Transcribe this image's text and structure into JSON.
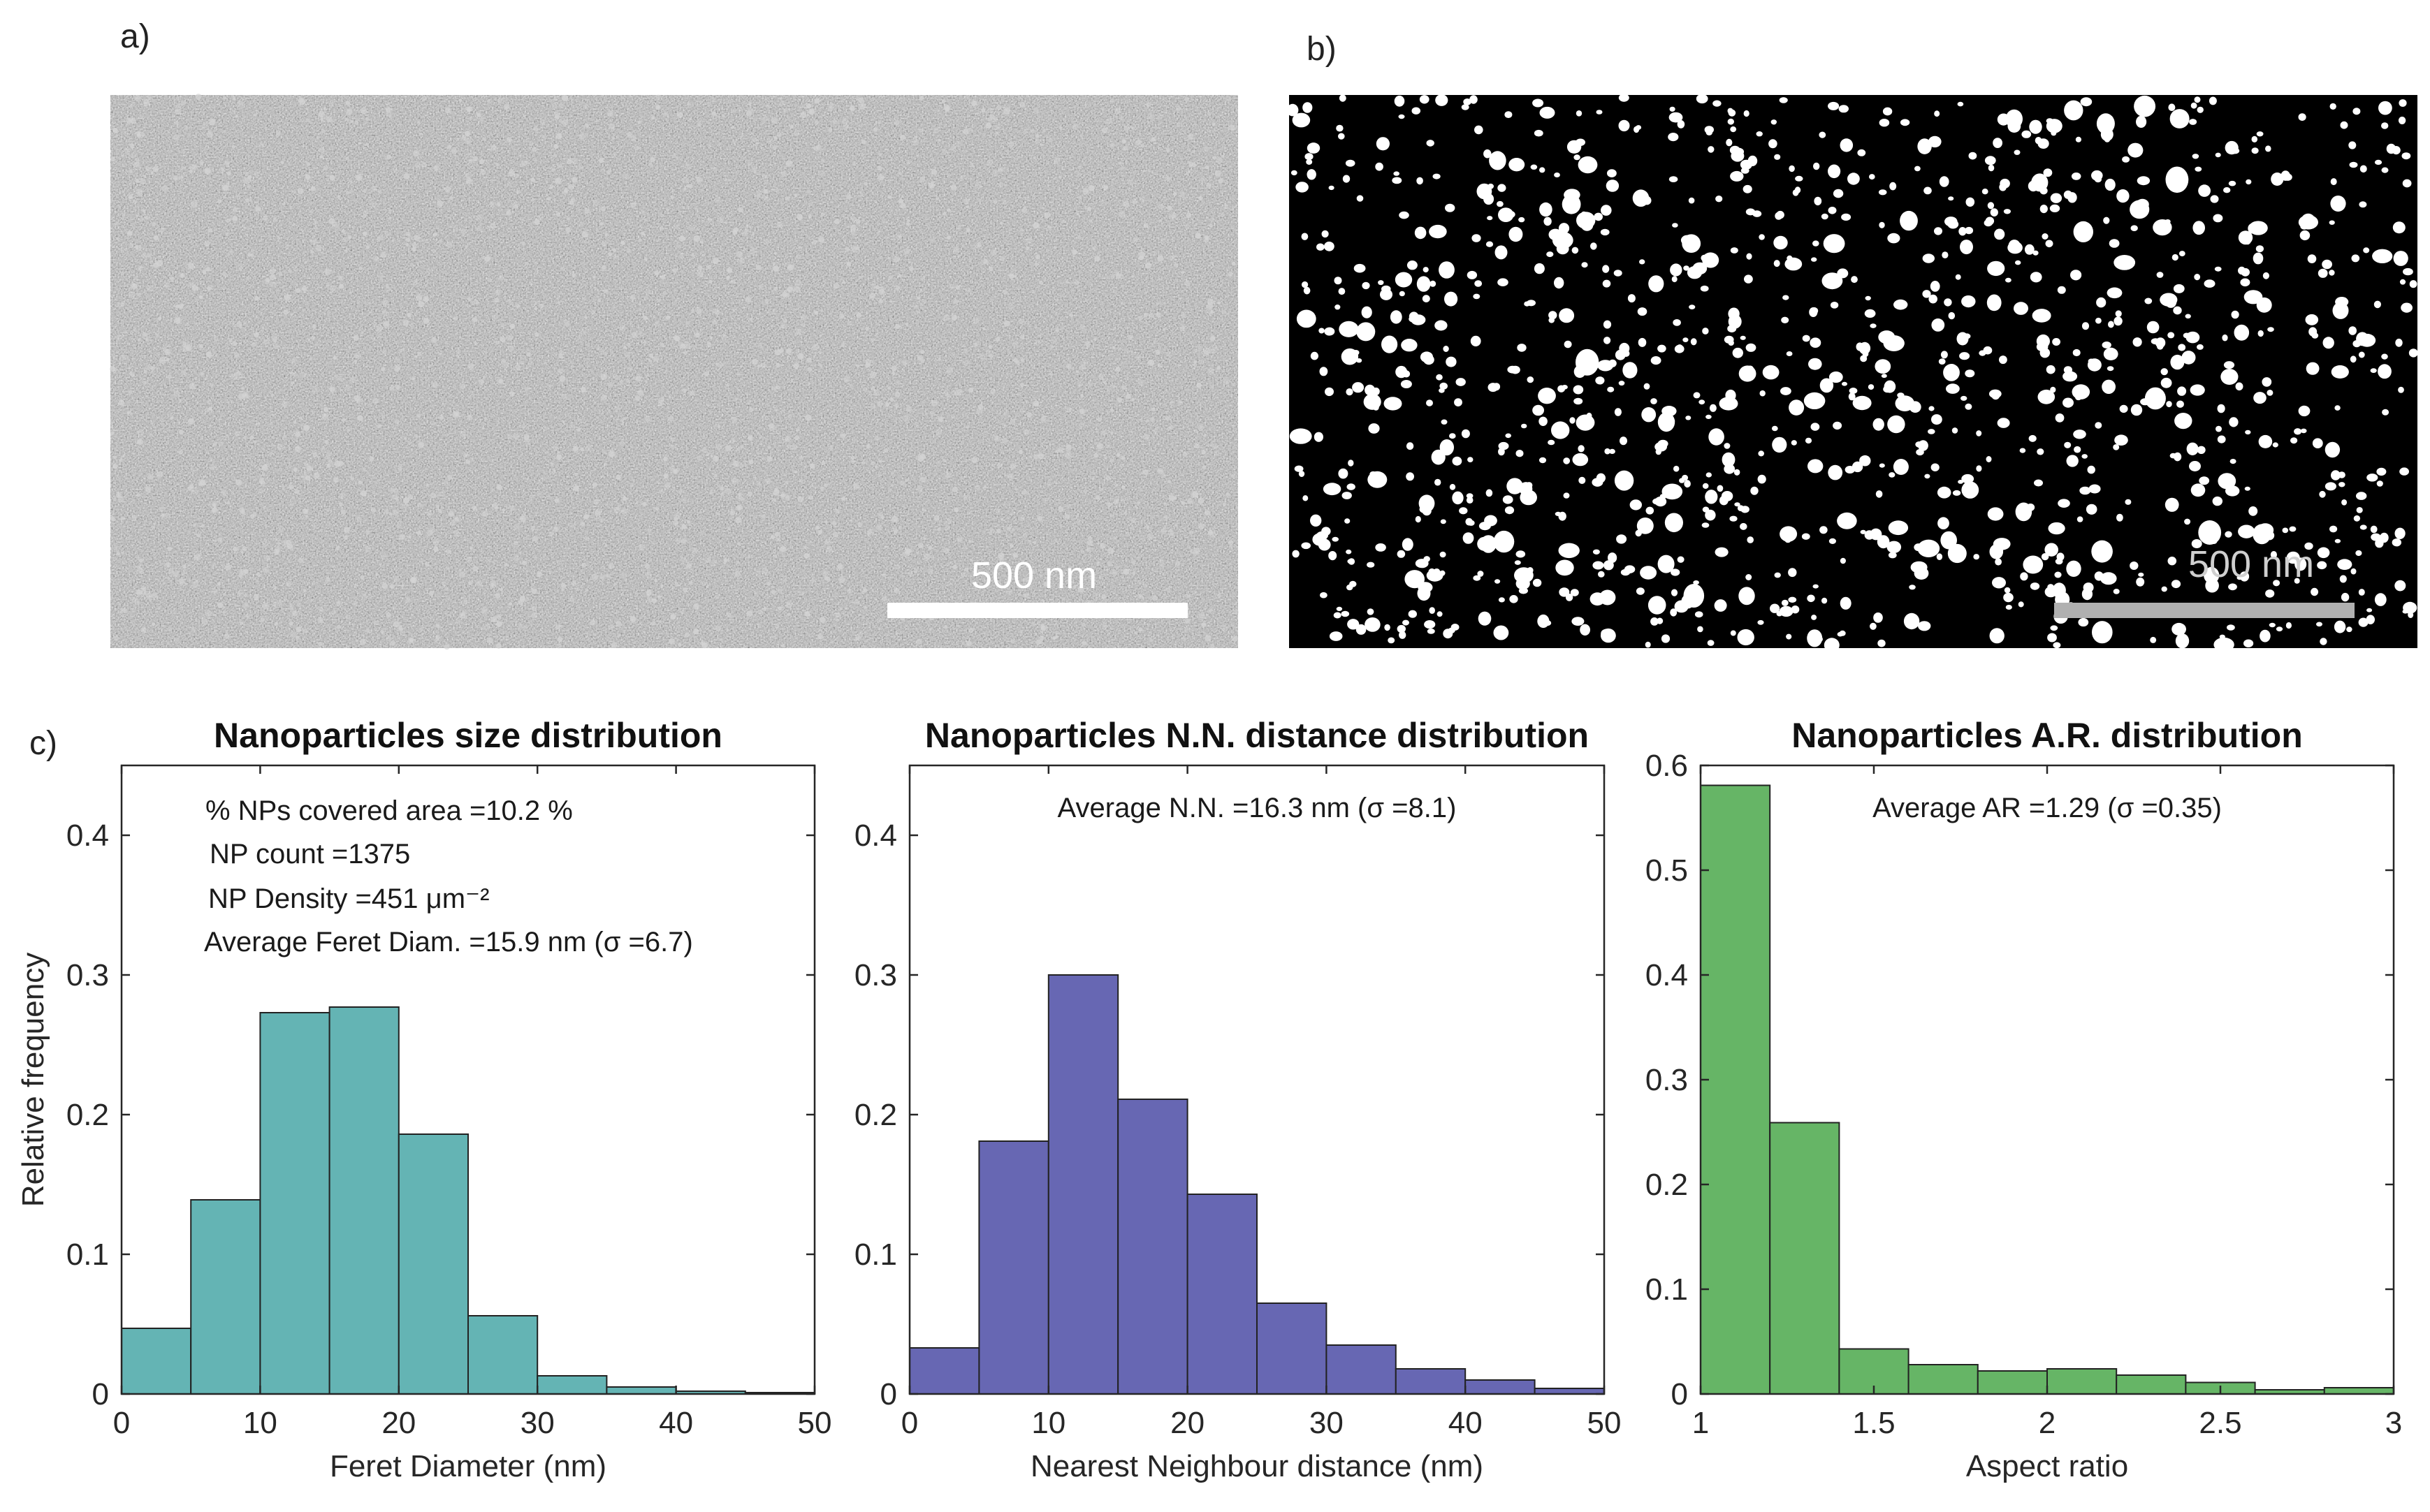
{
  "panels": {
    "a": {
      "label": "a)",
      "scale_text": "500 nm",
      "image_desc": "SEM micrograph"
    },
    "b": {
      "label": "b)",
      "scale_text": "500 nm",
      "image_desc": "binarized particle mask"
    },
    "c": {
      "label": "c)"
    }
  },
  "colors": {
    "teal": "#64b4b4",
    "purple": "#6767b3",
    "green": "#66b566",
    "edge": "#222222"
  },
  "chart_data": [
    {
      "type": "bar",
      "title": "Nanoparticles size distribution",
      "xlabel": "Feret Diameter (nm)",
      "ylabel": "Relative frequency",
      "xlim": [
        0,
        50
      ],
      "ylim": [
        0,
        0.45
      ],
      "xticks": [
        "0",
        "10",
        "20",
        "30",
        "40",
        "50"
      ],
      "xtick_values": [
        0,
        10,
        20,
        30,
        40,
        50
      ],
      "yticks": [
        "0",
        "0.1",
        "0.2",
        "0.3",
        "0.4"
      ],
      "ytick_values": [
        0,
        0.1,
        0.2,
        0.3,
        0.4
      ],
      "bin_edges": [
        0,
        5,
        10,
        15,
        20,
        25,
        30,
        35,
        40,
        45,
        50
      ],
      "values": [
        0.047,
        0.139,
        0.273,
        0.277,
        0.186,
        0.056,
        0.013,
        0.005,
        0.002,
        0.001
      ],
      "annotations": [
        "% NPs covered area =10.2 %",
        "NP count =1375",
        "NP Density =451 μm⁻²",
        "Average Feret Diam. =15.9 nm (σ =6.7)"
      ],
      "color": "#64b4b4"
    },
    {
      "type": "bar",
      "title": "Nanoparticles N.N. distance distribution",
      "xlabel": "Nearest Neighbour distance (nm)",
      "ylabel": "",
      "xlim": [
        0,
        50
      ],
      "ylim": [
        0,
        0.45
      ],
      "xticks": [
        "0",
        "10",
        "20",
        "30",
        "40",
        "50"
      ],
      "xtick_values": [
        0,
        10,
        20,
        30,
        40,
        50
      ],
      "yticks": [
        "0",
        "0.1",
        "0.2",
        "0.3",
        "0.4"
      ],
      "ytick_values": [
        0,
        0.1,
        0.2,
        0.3,
        0.4
      ],
      "bin_edges": [
        0,
        5,
        10,
        15,
        20,
        25,
        30,
        35,
        40,
        45,
        50
      ],
      "values": [
        0.033,
        0.181,
        0.3,
        0.211,
        0.143,
        0.065,
        0.035,
        0.018,
        0.01,
        0.004
      ],
      "annotations": [
        "Average N.N. =16.3 nm (σ =8.1)"
      ],
      "color": "#6767b3"
    },
    {
      "type": "bar",
      "title": "Nanoparticles A.R. distribution",
      "xlabel": "Aspect ratio",
      "ylabel": "",
      "xlim": [
        1,
        3
      ],
      "ylim": [
        0,
        0.6
      ],
      "xticks": [
        "1",
        "1.5",
        "2",
        "2.5",
        "3"
      ],
      "xtick_values": [
        1,
        1.5,
        2,
        2.5,
        3
      ],
      "yticks": [
        "0",
        "0.1",
        "0.2",
        "0.3",
        "0.4",
        "0.5",
        "0.6"
      ],
      "ytick_values": [
        0,
        0.1,
        0.2,
        0.3,
        0.4,
        0.5,
        0.6
      ],
      "bin_edges": [
        1,
        1.2,
        1.4,
        1.6,
        1.8,
        2.0,
        2.2,
        2.4,
        2.6,
        2.8,
        3.0
      ],
      "values": [
        0.581,
        0.259,
        0.043,
        0.028,
        0.022,
        0.024,
        0.018,
        0.011,
        0.004,
        0.006
      ],
      "annotations": [
        "Average AR =1.29 (σ =0.35)"
      ],
      "color": "#66b566"
    }
  ]
}
